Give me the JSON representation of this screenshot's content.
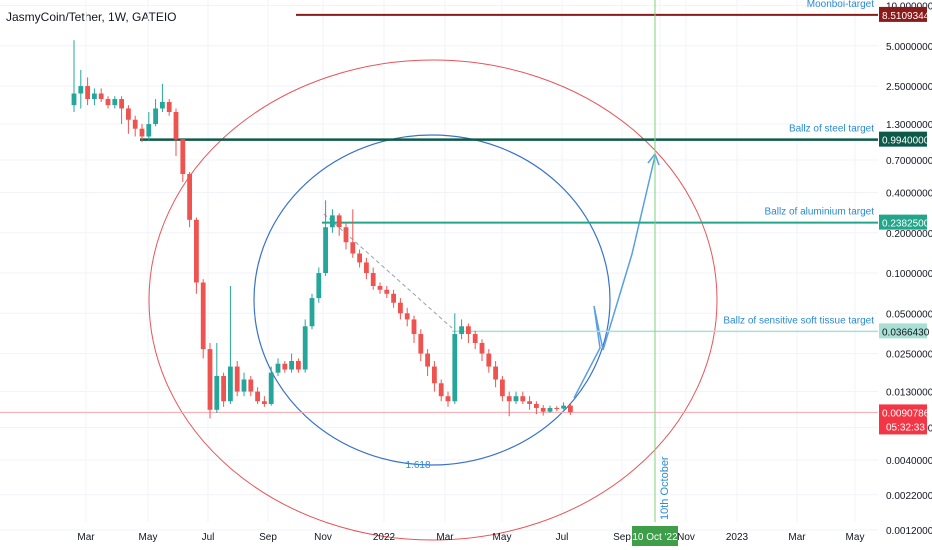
{
  "chart_data": {
    "type": "candlestick",
    "symbol": "JasmyCoin/Tether, 1W, GATEIO",
    "currency": "USDT",
    "y_scale": "log",
    "ylim": [
      0.00085,
      11
    ],
    "x_tick_labels": [
      "Mar",
      "May",
      "Jul",
      "Sep",
      "Nov",
      "2022",
      "Mar",
      "May",
      "Jul",
      "Sep",
      "10 Oct '22",
      "Nov",
      "2023",
      "Mar",
      "May"
    ],
    "y_tick_labels": [
      "10.0000000",
      "5.0000000",
      "2.5000000",
      "1.3000000",
      "0.7000000",
      "0.4000000",
      "0.2000000",
      "0.1000000",
      "0.0500000",
      "0.0250000",
      "0.0130000",
      "0.0070000",
      "0.0040000",
      "0.0022000",
      "0.0012000"
    ],
    "y_tick_values": [
      10,
      5,
      2.5,
      1.3,
      0.7,
      0.4,
      0.2,
      0.1,
      0.05,
      0.025,
      0.013,
      0.007,
      0.004,
      0.0022,
      0.0012
    ],
    "targets": [
      {
        "label": "Moonboi-target",
        "value": 8.5109344,
        "value_label": "8.5109344",
        "color": "#8b1a1a"
      },
      {
        "label": "Ballz of steel target",
        "value": 0.994,
        "value_label": "0.9940000",
        "color": "#0e5a4a"
      },
      {
        "label": "Ballz of aluminium target",
        "value": 0.23825,
        "value_label": "0.2382500",
        "color": "#22a68a"
      },
      {
        "label": "Ballz of sensitive soft tissue target",
        "value": 0.036643,
        "value_label": "0.0366430",
        "color": "#a8e0d4"
      }
    ],
    "current_price": {
      "value": 0.0090786,
      "value_label": "0.0090786",
      "countdown": "05:32:33",
      "color": "#f23645"
    },
    "vertical_marker": {
      "label": "10th October",
      "date_label": "10 Oct '22"
    },
    "fib_label": "1.618",
    "candles": [
      [
        1.8,
        2.2,
        1.6,
        5.5
      ],
      [
        2.2,
        2.5,
        1.7,
        3.3
      ],
      [
        2.5,
        2.0,
        1.8,
        2.9
      ],
      [
        2.0,
        2.2,
        1.8,
        2.4
      ],
      [
        2.2,
        2.0,
        1.9,
        2.4
      ],
      [
        2.0,
        1.8,
        1.7,
        2.1
      ],
      [
        1.8,
        2.0,
        1.7,
        2.1
      ],
      [
        2.0,
        1.7,
        1.3,
        2.1
      ],
      [
        1.7,
        1.4,
        1.1,
        1.8
      ],
      [
        1.4,
        1.2,
        1.05,
        1.5
      ],
      [
        1.2,
        1.05,
        0.95,
        1.3
      ],
      [
        1.05,
        1.3,
        0.98,
        1.6
      ],
      [
        1.3,
        1.7,
        1.25,
        2.0
      ],
      [
        1.7,
        1.9,
        1.6,
        2.6
      ],
      [
        1.9,
        1.6,
        1.5,
        2.0
      ],
      [
        1.6,
        1.0,
        0.75,
        1.7
      ],
      [
        1.0,
        0.55,
        0.48,
        1.0
      ],
      [
        0.55,
        0.25,
        0.22,
        0.57
      ],
      [
        0.25,
        0.085,
        0.07,
        0.26
      ],
      [
        0.085,
        0.027,
        0.023,
        0.09
      ],
      [
        0.027,
        0.0095,
        0.0082,
        0.03
      ],
      [
        0.0095,
        0.017,
        0.009,
        0.03
      ],
      [
        0.017,
        0.011,
        0.01,
        0.018
      ],
      [
        0.011,
        0.02,
        0.0105,
        0.08
      ],
      [
        0.02,
        0.013,
        0.012,
        0.022
      ],
      [
        0.013,
        0.016,
        0.012,
        0.018
      ],
      [
        0.016,
        0.013,
        0.012,
        0.017
      ],
      [
        0.013,
        0.011,
        0.0105,
        0.014
      ],
      [
        0.011,
        0.0105,
        0.01,
        0.012
      ],
      [
        0.0105,
        0.018,
        0.0102,
        0.02
      ],
      [
        0.018,
        0.021,
        0.017,
        0.023
      ],
      [
        0.021,
        0.019,
        0.018,
        0.022
      ],
      [
        0.019,
        0.022,
        0.018,
        0.025
      ],
      [
        0.022,
        0.019,
        0.018,
        0.023
      ],
      [
        0.019,
        0.04,
        0.018,
        0.045
      ],
      [
        0.04,
        0.065,
        0.038,
        0.07
      ],
      [
        0.065,
        0.1,
        0.06,
        0.11
      ],
      [
        0.1,
        0.22,
        0.095,
        0.35
      ],
      [
        0.22,
        0.27,
        0.2,
        0.3
      ],
      [
        0.27,
        0.22,
        0.19,
        0.28
      ],
      [
        0.22,
        0.17,
        0.15,
        0.24
      ],
      [
        0.17,
        0.14,
        0.13,
        0.3
      ],
      [
        0.14,
        0.12,
        0.11,
        0.15
      ],
      [
        0.12,
        0.1,
        0.09,
        0.13
      ],
      [
        0.1,
        0.08,
        0.075,
        0.11
      ],
      [
        0.08,
        0.075,
        0.07,
        0.085
      ],
      [
        0.075,
        0.07,
        0.065,
        0.08
      ],
      [
        0.07,
        0.06,
        0.055,
        0.075
      ],
      [
        0.06,
        0.05,
        0.045,
        0.065
      ],
      [
        0.05,
        0.045,
        0.04,
        0.055
      ],
      [
        0.045,
        0.035,
        0.03,
        0.048
      ],
      [
        0.035,
        0.025,
        0.022,
        0.038
      ],
      [
        0.025,
        0.02,
        0.017,
        0.027
      ],
      [
        0.02,
        0.015,
        0.013,
        0.022
      ],
      [
        0.015,
        0.012,
        0.011,
        0.016
      ],
      [
        0.012,
        0.011,
        0.01,
        0.013
      ],
      [
        0.011,
        0.035,
        0.0105,
        0.05
      ],
      [
        0.035,
        0.04,
        0.032,
        0.045
      ],
      [
        0.04,
        0.035,
        0.03,
        0.042
      ],
      [
        0.035,
        0.03,
        0.027,
        0.037
      ],
      [
        0.03,
        0.025,
        0.022,
        0.032
      ],
      [
        0.025,
        0.02,
        0.018,
        0.027
      ],
      [
        0.02,
        0.016,
        0.014,
        0.022
      ],
      [
        0.016,
        0.012,
        0.011,
        0.017
      ],
      [
        0.012,
        0.011,
        0.0085,
        0.013
      ],
      [
        0.011,
        0.012,
        0.0105,
        0.013
      ],
      [
        0.012,
        0.011,
        0.0105,
        0.013
      ],
      [
        0.011,
        0.0105,
        0.0095,
        0.012
      ],
      [
        0.0105,
        0.0098,
        0.0088,
        0.011
      ],
      [
        0.0098,
        0.0092,
        0.0086,
        0.0103
      ],
      [
        0.0092,
        0.0098,
        0.009,
        0.0102
      ],
      [
        0.0098,
        0.0097,
        0.0093,
        0.0101
      ],
      [
        0.0097,
        0.0102,
        0.0095,
        0.0108
      ],
      [
        0.0102,
        0.0091,
        0.0087,
        0.0105
      ]
    ]
  }
}
